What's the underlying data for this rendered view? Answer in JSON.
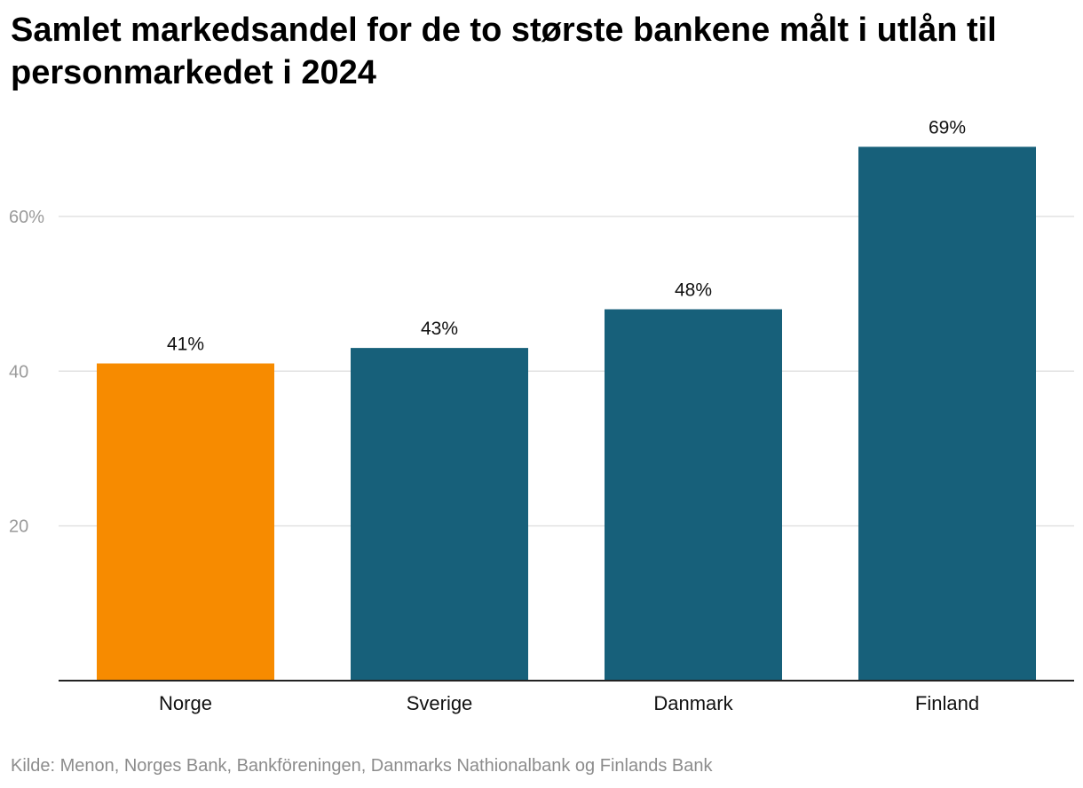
{
  "chart_data": {
    "type": "bar",
    "title": "Samlet markedsandel for de to største bankene målt i utlån til personmarkedet i 2024",
    "categories": [
      "Norge",
      "Sverige",
      "Danmark",
      "Finland"
    ],
    "values": [
      41,
      43,
      48,
      69
    ],
    "value_labels": [
      "41%",
      "43%",
      "48%",
      "69%"
    ],
    "yticks": [
      20,
      40,
      60
    ],
    "ytick_labels": [
      "20",
      "40",
      "60%"
    ],
    "ylim": [
      0,
      71
    ],
    "xlabel": "",
    "ylabel": "",
    "grid": true,
    "colors": [
      "#f78b00",
      "#17607a",
      "#17607a",
      "#17607a"
    ],
    "source": "Kilde: Menon, Norges Bank, Bankföreningen, Danmarks Nathionalbank og Finlands Bank"
  }
}
